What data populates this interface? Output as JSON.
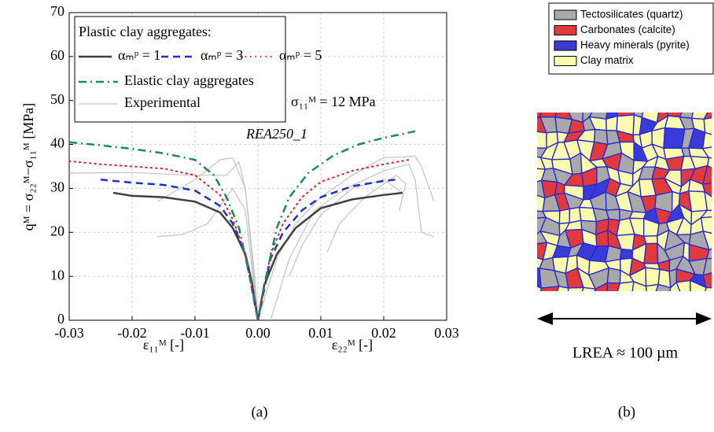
{
  "chart_data": {
    "type": "line",
    "ylabel": "qᴹ = σ₂₂ᴹ−σ₁₁ᴹ [MPa]",
    "xlabel_left": "ε₁₁ᴹ [-]",
    "xlabel_right": "ε₂₂ᴹ [-]",
    "legend_title": "Plastic clay aggregates:",
    "annotations": [
      "σ₁₁ᴹ = 12 MPa",
      "REA250_1"
    ],
    "panel_label": "(a)",
    "xlim": [
      -0.03,
      0.03
    ],
    "ylim": [
      0,
      70
    ],
    "xticks": [
      -0.03,
      -0.02,
      -0.01,
      {
        "value": 0,
        "label": "0.00"
      },
      0.01,
      0.02,
      0.03
    ],
    "yticks": [
      0,
      10,
      20,
      30,
      40,
      50,
      60,
      70
    ],
    "grid": true,
    "legend": "upper left",
    "series": [
      {
        "name": "αₘᵖ = 1",
        "color": "#404040",
        "linestyle": "solid",
        "x": [
          -0.023,
          -0.02,
          -0.015,
          -0.01,
          -0.006,
          -0.004,
          -0.002,
          -0.001,
          0,
          0.001,
          0.003,
          0.006,
          0.01,
          0.015,
          0.02,
          0.023
        ],
        "values": [
          29,
          28.3,
          28,
          27,
          24.5,
          21,
          15,
          9,
          0,
          8,
          15,
          21,
          25.5,
          27.5,
          28.5,
          29
        ]
      },
      {
        "name": "αₘᵖ = 3",
        "color": "#1f2fd8",
        "linestyle": "dashed",
        "x": [
          -0.025,
          -0.02,
          -0.015,
          -0.01,
          -0.006,
          -0.004,
          -0.002,
          0,
          0.002,
          0.004,
          0.007,
          0.01,
          0.015,
          0.02,
          0.022
        ],
        "values": [
          32,
          31.3,
          30.8,
          29.5,
          26,
          22,
          15,
          0,
          14,
          20,
          25,
          28,
          30.5,
          31.7,
          32
        ]
      },
      {
        "name": "αₘᵖ = 5",
        "color": "#e02020",
        "linestyle": "dotted",
        "x": [
          -0.03,
          -0.025,
          -0.02,
          -0.015,
          -0.01,
          -0.006,
          -0.004,
          -0.002,
          0,
          0.002,
          0.004,
          0.007,
          0.01,
          0.015,
          0.02,
          0.024
        ],
        "values": [
          36.2,
          35.5,
          35,
          34.5,
          33,
          28.5,
          23,
          15,
          0,
          15,
          22,
          28,
          31.5,
          34,
          35.5,
          36.5
        ]
      },
      {
        "name": "Elastic clay aggregates",
        "color": "#1a8a5a",
        "linestyle": "dashdot",
        "x": [
          -0.03,
          -0.025,
          -0.02,
          -0.015,
          -0.01,
          -0.007,
          -0.005,
          -0.003,
          -0.001,
          0,
          0.001,
          0.003,
          0.005,
          0.008,
          0.012,
          0.016,
          0.02,
          0.025
        ],
        "values": [
          40.5,
          39.8,
          39,
          38,
          36.5,
          33,
          28,
          21,
          8,
          0,
          8,
          21,
          28,
          33.5,
          37.5,
          40,
          41.5,
          43
        ]
      },
      {
        "name": "Experimental",
        "color": "#c4c4c4",
        "linestyle": "thin",
        "x": [
          -0.03,
          -0.02,
          -0.01,
          -0.005,
          -0.003,
          -0.002,
          -0.001,
          0
        ],
        "values": [
          33.5,
          33.6,
          33,
          33,
          36,
          30,
          15,
          0
        ]
      },
      {
        "color": "#c4c4c4",
        "linestyle": "thin",
        "x": [
          -0.016,
          -0.01,
          -0.006,
          -0.004,
          -0.002,
          -0.0005,
          0
        ],
        "values": [
          27,
          32,
          36.5,
          37,
          30,
          10,
          0
        ]
      },
      {
        "color": "#c4c4c4",
        "linestyle": "thin",
        "x": [
          -0.016,
          -0.012,
          -0.008,
          -0.004,
          -0.002,
          0
        ],
        "values": [
          19,
          19.5,
          22,
          30,
          25,
          0
        ]
      },
      {
        "color": "#c4c4c4",
        "linestyle": "thin",
        "x": [
          0,
          0.003,
          0.006,
          0.01,
          0.015,
          0.02,
          0.025,
          0.026,
          0.028
        ],
        "values": [
          0,
          14,
          22,
          28,
          33,
          37,
          37.3,
          35,
          27
        ]
      },
      {
        "color": "#c4c4c4",
        "linestyle": "thin",
        "x": [
          0.002,
          0.005,
          0.009,
          0.014,
          0.02,
          0.024,
          0.025,
          0.026,
          0.028
        ],
        "values": [
          0,
          14,
          25,
          30,
          34,
          35.5,
          32,
          20,
          19
        ]
      },
      {
        "color": "#c4c4c4",
        "linestyle": "thin",
        "x": [
          0.005,
          0.007,
          0.01,
          0.015,
          0.02,
          0.023
        ],
        "values": [
          10,
          17,
          24,
          30,
          32,
          29
        ]
      },
      {
        "color": "#c4c4c4",
        "linestyle": "thin",
        "x": [
          0.011,
          0.013,
          0.017,
          0.022,
          0.0235,
          0.0225
        ],
        "values": [
          15.5,
          22,
          28,
          33,
          31,
          25
        ]
      }
    ]
  },
  "microstructure": {
    "legend": [
      {
        "label": "Tectosilicates (quartz)",
        "color": "#a9a9a9"
      },
      {
        "label": "Carbonates (calcite)",
        "color": "#e23a3a"
      },
      {
        "label": "Heavy minerals (pyrite)",
        "color": "#3a3ad8"
      },
      {
        "label": "Clay matrix",
        "color": "#fbfbae"
      }
    ],
    "scale_label": "LREA ≈ 100 µm",
    "panel_label": "(b)"
  }
}
